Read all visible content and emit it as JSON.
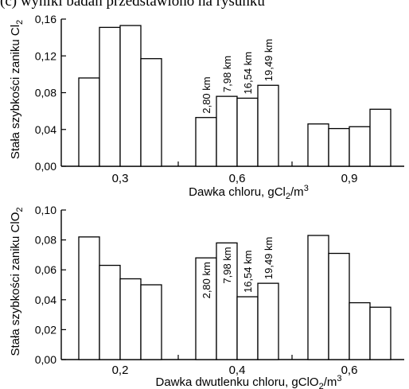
{
  "top_caption": "(c) wyniki badań przedstawiono na rysunku",
  "chart_data": [
    {
      "type": "bar",
      "categories": [
        "0,3",
        "0,6",
        "0,9"
      ],
      "series": [
        {
          "name": "2,80 km",
          "values": [
            0.096,
            0.053,
            0.046
          ]
        },
        {
          "name": "7,98 km",
          "values": [
            0.151,
            0.076,
            0.041
          ]
        },
        {
          "name": "16,54 km",
          "values": [
            0.153,
            0.074,
            0.043
          ]
        },
        {
          "name": "19,49 km",
          "values": [
            0.117,
            0.088,
            0.062
          ]
        }
      ],
      "bar_labels": {
        "category_index": 1,
        "labels": [
          "2,80 km",
          "7,98 km",
          "16,54 km",
          "19,49 km"
        ]
      },
      "xlabel": "Dawka chloru, gCl",
      "xlabel_sub": "2",
      "xlabel_unit": "/m",
      "xlabel_sup": "3",
      "ylabel": "Stała szybkości zaniku Cl",
      "ylabel_sub": "2",
      "ylim": [
        0,
        0.16
      ],
      "yticks": [
        "0,00",
        "0,04",
        "0,08",
        "0,12",
        "0,16"
      ]
    },
    {
      "type": "bar",
      "categories": [
        "0,2",
        "0,4",
        "0,6"
      ],
      "series": [
        {
          "name": "2,80 km",
          "values": [
            0.082,
            0.068,
            0.083
          ]
        },
        {
          "name": "7,98 km",
          "values": [
            0.063,
            0.078,
            0.071
          ]
        },
        {
          "name": "16,54 km",
          "values": [
            0.054,
            0.042,
            0.038
          ]
        },
        {
          "name": "19,49 km",
          "values": [
            0.05,
            0.051,
            0.035
          ]
        }
      ],
      "bar_labels": {
        "category_index": 1,
        "labels": [
          "2,80 km",
          "7,98 km",
          "16,54 km",
          "19,49 km"
        ]
      },
      "xlabel": "Dawka dwutlenku chloru, gClO",
      "xlabel_sub": "2",
      "xlabel_unit": "/m",
      "xlabel_sup": "3",
      "ylabel": "Stała szybkości zaniku ClO",
      "ylabel_sub": "2",
      "ylim": [
        0,
        0.1
      ],
      "yticks": [
        "0,00",
        "0,02",
        "0,04",
        "0,06",
        "0,08",
        "0,10"
      ]
    }
  ]
}
